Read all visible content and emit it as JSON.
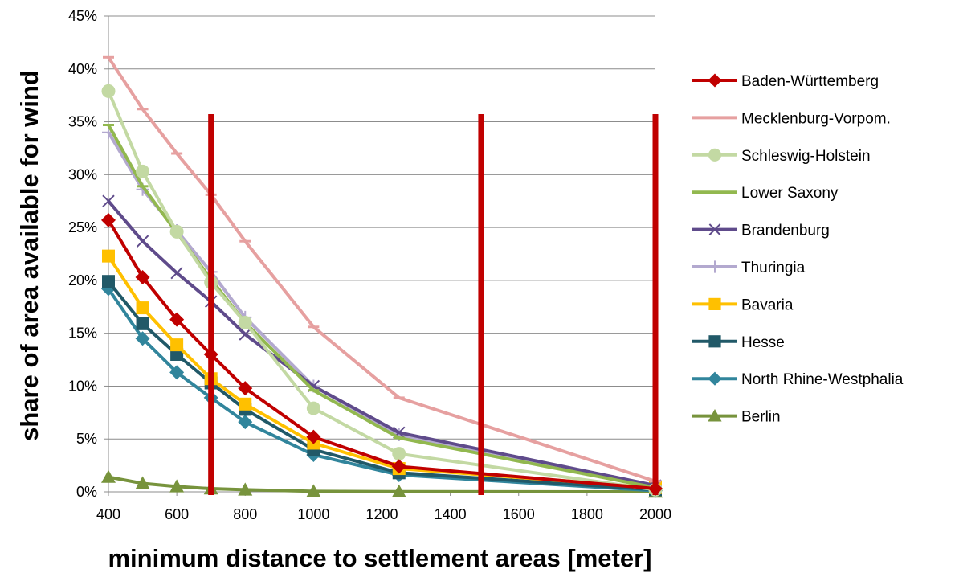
{
  "chart_data": {
    "type": "line",
    "title": "",
    "xlabel": "minimum distance to settlement areas [meter]",
    "ylabel": "share of area available for wind",
    "xlim": [
      400,
      2000
    ],
    "ylim": [
      0,
      45
    ],
    "x_ticks": [
      "400",
      "600",
      "800",
      "1000",
      "1200",
      "1400",
      "1600",
      "1800",
      "2000"
    ],
    "x_tick_values": [
      400,
      600,
      800,
      1000,
      1200,
      1400,
      1600,
      1800,
      2000
    ],
    "y_ticks": [
      "0%",
      "5%",
      "10%",
      "15%",
      "20%",
      "25%",
      "30%",
      "35%",
      "40%",
      "45%"
    ],
    "y_tick_values": [
      0,
      5,
      10,
      15,
      20,
      25,
      30,
      35,
      40,
      45
    ],
    "grid": "horizontal",
    "legend_position": "right",
    "x": [
      400,
      500,
      600,
      700,
      800,
      1000,
      1250,
      2000
    ],
    "series": [
      {
        "name": "Baden-Württemberg",
        "color": "#C00000",
        "marker": "diamond",
        "values": [
          25.7,
          20.3,
          16.3,
          13.0,
          9.8,
          5.2,
          2.4,
          0.3
        ]
      },
      {
        "name": "Mecklenburg-Vorpom.",
        "color": "#E6A0A0",
        "marker": "dash",
        "values": [
          41.1,
          36.2,
          32.0,
          28.1,
          23.7,
          15.6,
          8.9,
          1.0
        ]
      },
      {
        "name": "Schleswig-Holstein",
        "color": "#C3D9A3",
        "marker": "circle",
        "values": [
          37.9,
          30.3,
          24.6,
          19.8,
          16.0,
          7.9,
          3.6,
          0.2
        ]
      },
      {
        "name": "Lower Saxony",
        "color": "#92B84F",
        "marker": "dash",
        "values": [
          34.7,
          28.9,
          24.5,
          20.1,
          16.0,
          9.6,
          5.1,
          0.4
        ]
      },
      {
        "name": "Brandenburg",
        "color": "#5F4B8B",
        "marker": "x",
        "values": [
          27.5,
          23.7,
          20.7,
          18.0,
          14.9,
          10.0,
          5.6,
          0.6
        ]
      },
      {
        "name": "Thuringia",
        "color": "#B3A9CF",
        "marker": "plus",
        "values": [
          34.0,
          28.6,
          24.7,
          20.8,
          16.5,
          10.0,
          5.4,
          0.5
        ]
      },
      {
        "name": "Bavaria",
        "color": "#FFC000",
        "marker": "square",
        "values": [
          22.3,
          17.4,
          13.9,
          10.7,
          8.3,
          4.6,
          2.2,
          0.4
        ]
      },
      {
        "name": "Hesse",
        "color": "#215968",
        "marker": "square",
        "values": [
          19.9,
          15.9,
          13.0,
          10.3,
          7.8,
          4.0,
          1.8,
          0.2
        ]
      },
      {
        "name": "North Rhine-Westphalia",
        "color": "#31859C",
        "marker": "diamond",
        "values": [
          19.2,
          14.5,
          11.3,
          8.9,
          6.6,
          3.5,
          1.6,
          0.1
        ]
      },
      {
        "name": "Berlin",
        "color": "#77933C",
        "marker": "triangle",
        "values": [
          1.4,
          0.8,
          0.5,
          0.3,
          0.2,
          0.05,
          0.02,
          0.0
        ]
      }
    ],
    "reference_lines": {
      "color": "#C00000",
      "x": [
        700,
        1490,
        2000
      ]
    }
  }
}
